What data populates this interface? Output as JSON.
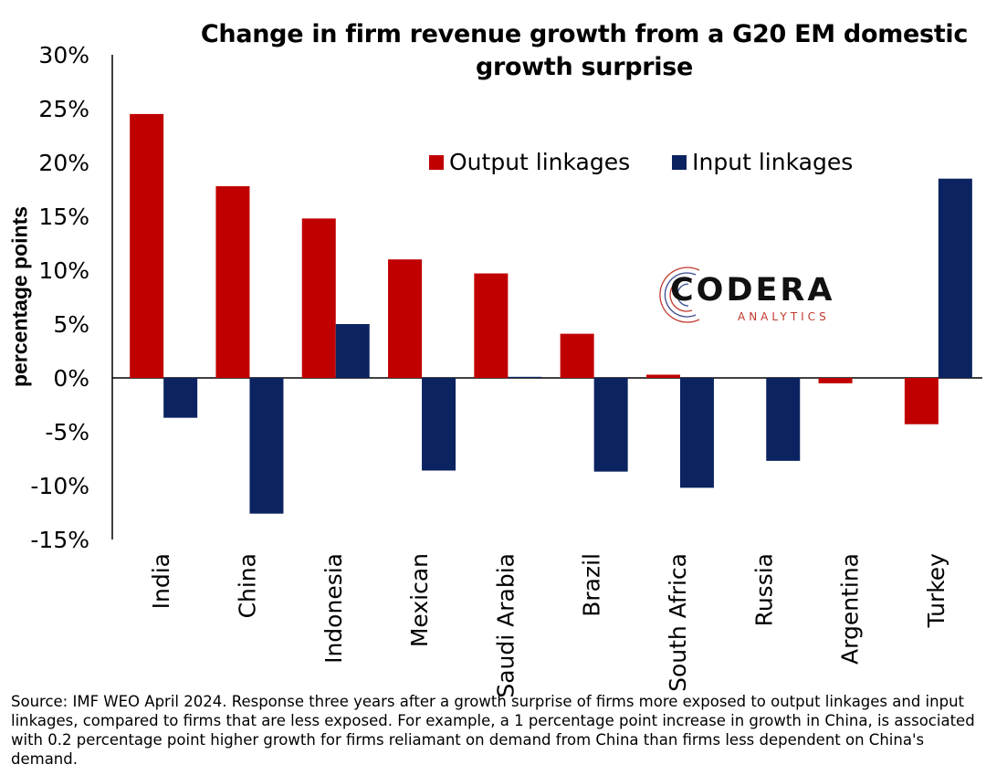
{
  "chart_data": {
    "type": "bar",
    "title": "Change in firm revenue growth from a G20 EM domestic growth surprise",
    "ylabel": "percentage points",
    "xlabel": "",
    "ylim": [
      -15,
      30
    ],
    "yticks": [
      30,
      25,
      20,
      15,
      10,
      5,
      0,
      -5,
      -10,
      -15
    ],
    "ytick_labels": [
      "30%",
      "25%",
      "20%",
      "15%",
      "10%",
      "5%",
      "0%",
      "-5%",
      "-10%",
      "-15%"
    ],
    "categories": [
      "India",
      "China",
      "Indonesia",
      "Mexican",
      "Saudi Arabia",
      "Brazil",
      "South Africa",
      "Russia",
      "Argentina",
      "Turkey"
    ],
    "series": [
      {
        "name": "Output linkages",
        "color": "#c00000",
        "values": [
          24.5,
          17.8,
          14.8,
          11.0,
          9.7,
          4.1,
          0.3,
          0.0,
          -0.5,
          -4.3
        ]
      },
      {
        "name": "Input linkages",
        "color": "#0b2360",
        "values": [
          -3.7,
          -12.6,
          5.0,
          -8.6,
          0.1,
          -8.7,
          -10.2,
          -7.7,
          0.0,
          18.5
        ]
      }
    ],
    "legend_position": "top-right",
    "grid": false
  },
  "logo": {
    "word": "CODERA",
    "sub": "ANALYTICS"
  },
  "source_text": "Source: IMF WEO April 2024. Response three years after a growth surprise of firms more exposed to output linkages and input linkages, compared to firms that are less exposed. For example, a 1 percentage point increase in growth in China, is associated with 0.2 percentage point higher growth for firms reliamant on demand from China than firms less dependent on China's demand."
}
